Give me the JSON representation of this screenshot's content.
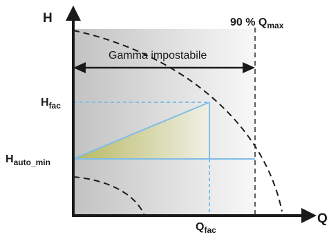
{
  "axes": {
    "y_label": "H",
    "x_label": "Q"
  },
  "limit": {
    "label_main": "90 % Q",
    "label_sub": "max"
  },
  "range": {
    "label": "Gamma impostabile"
  },
  "h_fac": {
    "main": "H",
    "sub": "fac"
  },
  "h_auto_min": {
    "main": "H",
    "sub": "auto_min"
  },
  "q_fac": {
    "main": "Q",
    "sub": "fac"
  },
  "colors": {
    "axis": "#1a1a1a",
    "curve": "#1a1a1a",
    "setting_lines": "#7fbde6",
    "triangle_fill": "#c8c77a",
    "background_dark": "#c4c4c4",
    "background_light": "#f7f7f7"
  }
}
